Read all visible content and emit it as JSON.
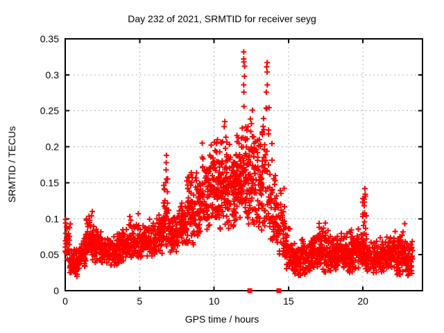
{
  "chart_data": {
    "type": "scatter",
    "title": "Day 232 of 2021, SRMTID for receiver seyg",
    "xlabel": "GPS time / hours",
    "ylabel": "SRMTID / TECUs",
    "xlim": [
      0,
      24
    ],
    "ylim": [
      0,
      0.35
    ],
    "xticks": {
      "values": [
        0,
        5,
        10,
        15,
        20
      ],
      "labels": [
        "0",
        "5",
        "10",
        "15",
        "20"
      ]
    },
    "yticks": {
      "values": [
        0,
        0.05,
        0.1,
        0.15,
        0.2,
        0.25,
        0.3,
        0.35
      ],
      "labels": [
        "0",
        "0.05",
        "0.1",
        "0.15",
        "0.2",
        "0.25",
        "0.3",
        "0.35"
      ]
    },
    "grid": true,
    "legend": "none",
    "marker": {
      "shape": "plus",
      "size": 8,
      "color": "#ff0000"
    },
    "series_name": "SRMTID",
    "band_format": [
      "x_start_h",
      "x_end_h",
      "y_low_TECU",
      "y_high_TECU",
      "point_count",
      "low_skew"
    ],
    "scatter_bands": [
      [
        0.0,
        0.35,
        0.04,
        0.1,
        28,
        1.2
      ],
      [
        0.3,
        0.9,
        0.018,
        0.062,
        75,
        1.2
      ],
      [
        0.9,
        1.35,
        0.03,
        0.075,
        55,
        1.2
      ],
      [
        1.35,
        1.95,
        0.04,
        0.112,
        60,
        1.4
      ],
      [
        1.95,
        2.4,
        0.038,
        0.1,
        50,
        1.4
      ],
      [
        2.4,
        3.0,
        0.035,
        0.078,
        62,
        1.2
      ],
      [
        3.0,
        3.6,
        0.032,
        0.08,
        62,
        1.2
      ],
      [
        3.6,
        4.25,
        0.04,
        0.088,
        62,
        1.2
      ],
      [
        4.25,
        4.95,
        0.04,
        0.108,
        65,
        1.3
      ],
      [
        4.95,
        5.55,
        0.045,
        0.1,
        62,
        1.2
      ],
      [
        5.55,
        6.15,
        0.048,
        0.1,
        60,
        1.2
      ],
      [
        6.15,
        6.6,
        0.05,
        0.112,
        55,
        1.2
      ],
      [
        6.6,
        6.95,
        0.06,
        0.19,
        38,
        1.8
      ],
      [
        6.95,
        7.55,
        0.05,
        0.115,
        60,
        1.2
      ],
      [
        7.55,
        8.15,
        0.055,
        0.13,
        62,
        1.2
      ],
      [
        8.15,
        8.75,
        0.06,
        0.17,
        62,
        1.4
      ],
      [
        8.75,
        9.35,
        0.07,
        0.205,
        65,
        1.4
      ],
      [
        9.35,
        9.95,
        0.08,
        0.215,
        68,
        1.3
      ],
      [
        9.95,
        10.45,
        0.085,
        0.225,
        68,
        1.3
      ],
      [
        10.45,
        10.95,
        0.09,
        0.24,
        68,
        1.3
      ],
      [
        10.95,
        11.45,
        0.085,
        0.215,
        65,
        1.3
      ],
      [
        11.45,
        11.9,
        0.09,
        0.235,
        62,
        1.3
      ],
      [
        11.9,
        12.2,
        0.1,
        0.3,
        34,
        1.8
      ],
      [
        12.2,
        12.75,
        0.085,
        0.255,
        68,
        1.3
      ],
      [
        12.75,
        13.35,
        0.08,
        0.245,
        68,
        1.3
      ],
      [
        13.35,
        13.7,
        0.09,
        0.3,
        32,
        1.8
      ],
      [
        13.7,
        14.25,
        0.06,
        0.205,
        55,
        1.5
      ],
      [
        14.25,
        14.75,
        0.05,
        0.155,
        45,
        1.6
      ],
      [
        14.75,
        15.25,
        0.028,
        0.095,
        45,
        1.5
      ],
      [
        15.25,
        15.85,
        0.018,
        0.072,
        58,
        1.2
      ],
      [
        15.85,
        16.45,
        0.02,
        0.078,
        62,
        1.2
      ],
      [
        16.45,
        17.05,
        0.025,
        0.082,
        62,
        1.2
      ],
      [
        17.05,
        17.65,
        0.022,
        0.096,
        62,
        1.3
      ],
      [
        17.65,
        18.25,
        0.025,
        0.082,
        62,
        1.2
      ],
      [
        18.25,
        18.85,
        0.03,
        0.082,
        65,
        1.2
      ],
      [
        18.85,
        19.45,
        0.022,
        0.086,
        62,
        1.2
      ],
      [
        19.45,
        19.95,
        0.03,
        0.09,
        55,
        1.2
      ],
      [
        19.95,
        20.25,
        0.03,
        0.145,
        40,
        1.7
      ],
      [
        20.25,
        20.95,
        0.02,
        0.072,
        62,
        1.2
      ],
      [
        20.95,
        21.55,
        0.025,
        0.076,
        62,
        1.2
      ],
      [
        21.55,
        22.15,
        0.03,
        0.082,
        62,
        1.2
      ],
      [
        22.15,
        22.75,
        0.02,
        0.092,
        62,
        1.3
      ],
      [
        22.75,
        23.35,
        0.02,
        0.072,
        58,
        1.2
      ]
    ],
    "peak_points": [
      {
        "x": 12.02,
        "ys": [
          0.332,
          0.322,
          0.318,
          0.312,
          0.298,
          0.286,
          0.276,
          0.256
        ]
      },
      {
        "x": 13.55,
        "ys": [
          0.317,
          0.311,
          0.304,
          0.286,
          0.276,
          0.253
        ]
      },
      {
        "x": 12.6,
        "ys": [
          0.251
        ]
      },
      {
        "x": 10.7,
        "ys": [
          0.235,
          0.228
        ]
      },
      {
        "x": 9.2,
        "ys": [
          0.205
        ]
      },
      {
        "x": 6.78,
        "ys": [
          0.188,
          0.178,
          0.168,
          0.155
        ]
      },
      {
        "x": 20.12,
        "ys": [
          0.142,
          0.134,
          0.127,
          0.118,
          0.108
        ]
      },
      {
        "x": 1.8,
        "ys": [
          0.11,
          0.104
        ]
      },
      {
        "x": 4.87,
        "ys": [
          0.107
        ]
      },
      {
        "x": 0.06,
        "ys": [
          0.099,
          0.094,
          0.089
        ]
      },
      {
        "x": 8.45,
        "ys": [
          0.164
        ]
      },
      {
        "x": 14.5,
        "ys": [
          0.12,
          0.112
        ]
      },
      {
        "x": 17.5,
        "ys": [
          0.094
        ]
      },
      {
        "x": 22.8,
        "ys": [
          0.093
        ]
      }
    ],
    "axis_marker_squares": {
      "shape": "filled-square",
      "size": 7,
      "color": "#ff0000",
      "points": [
        {
          "x": 12.4,
          "y": 0
        },
        {
          "x": 14.35,
          "y": 0
        }
      ]
    }
  },
  "colors": {
    "marker": "#ff0000",
    "grid": "#b0b0b0",
    "axis": "#000000",
    "background": "#ffffff",
    "text": "#000000"
  }
}
